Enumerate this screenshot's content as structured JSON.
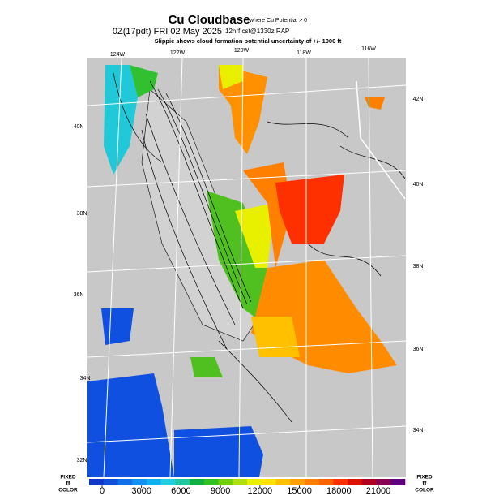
{
  "header": {
    "title": "Cu Cloudbase",
    "title_note": "where Cu Potential > 0",
    "line2": "0Z(17pdt) FRI 02 May 2025",
    "line2_note": "12hrf cst@1330z RAP",
    "line3": "Slippie shows cloud formation potential uncertainty of +/- 1000 ft"
  },
  "map": {
    "lon_labels": [
      "124W",
      "122W",
      "120W",
      "118W",
      "116W"
    ],
    "lat_labels_left": [
      "40N",
      "38N",
      "36N",
      "34N",
      "32N"
    ],
    "lat_labels_right": [
      "42N",
      "40N",
      "38N",
      "36N",
      "34N"
    ]
  },
  "colorbar": {
    "left_label": [
      "FIXED",
      "ft",
      "COLOR"
    ],
    "right_label": [
      "FIXED",
      "ft",
      "COLOR"
    ],
    "ticks": [
      0,
      3000,
      6000,
      9000,
      12000,
      15000,
      18000,
      21000
    ],
    "colors": [
      "#1038c8",
      "#1050d8",
      "#1070e8",
      "#1090f0",
      "#10b0f0",
      "#20d0e0",
      "#20c8a0",
      "#10b040",
      "#30c020",
      "#70d010",
      "#b0e010",
      "#e8f000",
      "#ffe000",
      "#ffc000",
      "#ffa000",
      "#ff8000",
      "#ff6000",
      "#ff3000",
      "#e01000",
      "#b00020",
      "#880050",
      "#600080"
    ]
  }
}
